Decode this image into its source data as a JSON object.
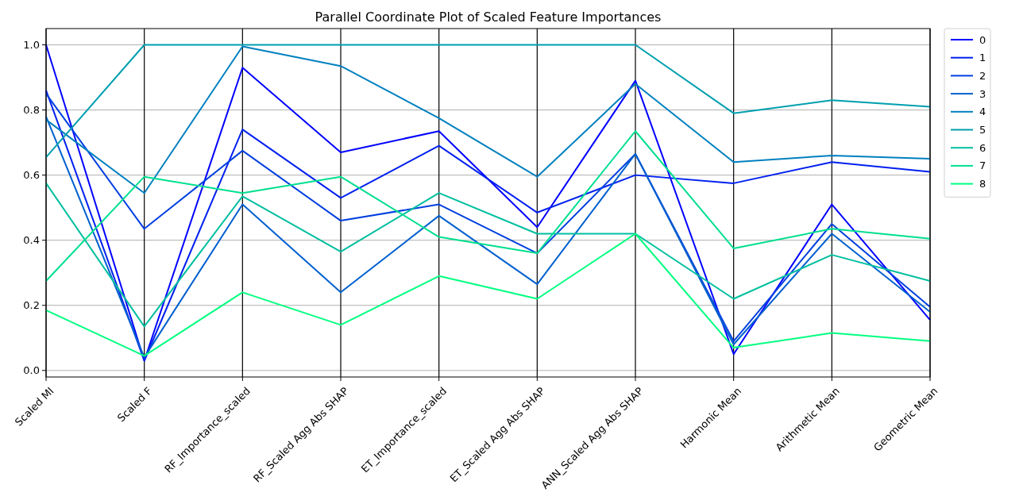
{
  "chart_data": {
    "type": "line",
    "title": "Parallel Coordinate Plot of Scaled Feature Importances",
    "categories": [
      "Scaled MI",
      "Scaled F",
      "RF_Importance_scaled",
      "RF_Scaled Agg Abs SHAP",
      "ET_Importance_scaled",
      "ET_Scaled Agg Abs SHAP",
      "ANN_Scaled Agg Abs SHAP",
      "Harmonic Mean",
      "Arithmetic Mean",
      "Geometric Mean"
    ],
    "ylim": [
      -0.02,
      1.05
    ],
    "yticks": [
      {
        "value": 0,
        "label": "0.0"
      },
      {
        "value": 0.2,
        "label": "0.2"
      },
      {
        "value": 0.4,
        "label": "0.4"
      },
      {
        "value": 0.6,
        "label": "0.6"
      },
      {
        "value": 0.8,
        "label": "0.8"
      },
      {
        "value": 1,
        "label": "1.0"
      }
    ],
    "grid": true,
    "legend": "top right",
    "marker": "none",
    "line_style": "solid",
    "series": [
      {
        "name": "0",
        "color": "#0000ff",
        "values": [
          1.0,
          0.03,
          0.93,
          0.67,
          0.735,
          0.44,
          0.89,
          0.05,
          0.51,
          0.155
        ]
      },
      {
        "name": "1",
        "color": "#0020ef",
        "values": [
          0.86,
          0.03,
          0.74,
          0.53,
          0.69,
          0.485,
          0.6,
          0.575,
          0.64,
          0.61
        ]
      },
      {
        "name": "2",
        "color": "#0040df",
        "values": [
          0.85,
          0.435,
          0.675,
          0.46,
          0.51,
          0.36,
          0.665,
          0.09,
          0.45,
          0.195
        ]
      },
      {
        "name": "3",
        "color": "#0060cf",
        "values": [
          0.78,
          0.04,
          0.51,
          0.24,
          0.475,
          0.265,
          0.665,
          0.08,
          0.42,
          0.18
        ]
      },
      {
        "name": "4",
        "color": "#0080bf",
        "values": [
          0.77,
          0.545,
          0.995,
          0.935,
          0.775,
          0.595,
          0.88,
          0.64,
          0.66,
          0.65
        ]
      },
      {
        "name": "5",
        "color": "#009faf",
        "values": [
          0.655,
          1.0,
          1.0,
          1.0,
          1.0,
          1.0,
          1.0,
          0.79,
          0.83,
          0.81
        ]
      },
      {
        "name": "6",
        "color": "#00bf9f",
        "values": [
          0.575,
          0.135,
          0.535,
          0.365,
          0.545,
          0.42,
          0.42,
          0.22,
          0.355,
          0.275
        ]
      },
      {
        "name": "7",
        "color": "#00df8f",
        "values": [
          0.275,
          0.595,
          0.545,
          0.595,
          0.41,
          0.36,
          0.735,
          0.375,
          0.435,
          0.405
        ]
      },
      {
        "name": "8",
        "color": "#00ff80",
        "values": [
          0.185,
          0.045,
          0.24,
          0.14,
          0.29,
          0.22,
          0.42,
          0.07,
          0.115,
          0.09
        ]
      }
    ]
  }
}
